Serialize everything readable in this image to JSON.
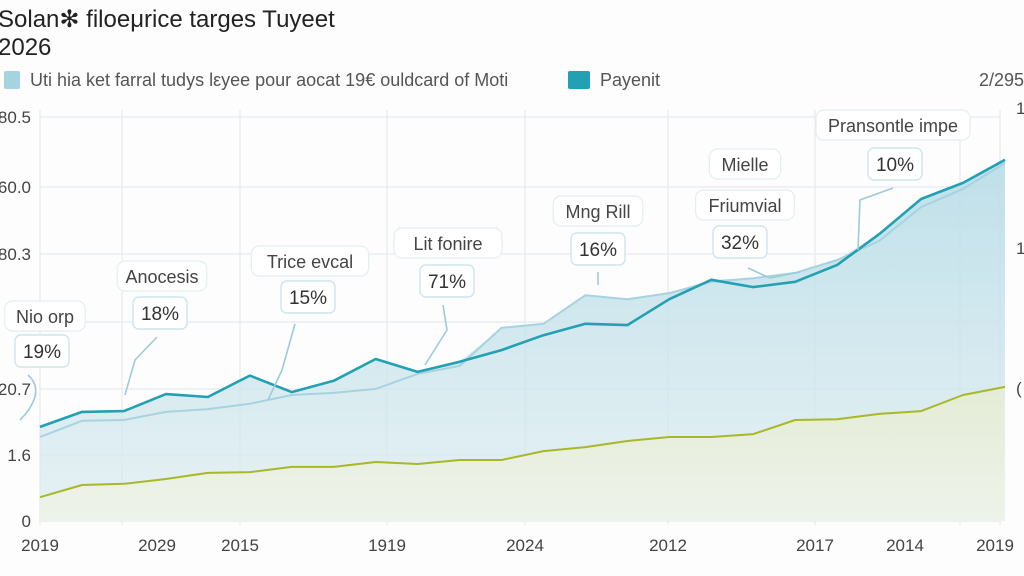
{
  "chart_data": {
    "type": "area",
    "title": "Solan✻ filoeμrice targes Tuyeet\n2026",
    "page_indicator": "2/295",
    "legend": [
      {
        "name": "Uti hia ket farral tudys lεyee pour aocat 19€ ouldcard of Moti",
        "color": "#a6d3e0"
      },
      {
        "name": "Payenit",
        "color": "#23a0b3"
      }
    ],
    "legend_placement": "top-left",
    "grid": true,
    "x_tick_labels": [
      "2019",
      "2029",
      "2015",
      "1919",
      "2024",
      "2012",
      "2017",
      "2014",
      "2019"
    ],
    "y_tick_labels": [
      "0",
      "1.6",
      "20.7",
      "",
      "80.3",
      "60.0",
      "80.5"
    ],
    "y_right_tick_labels": [
      "(",
      "1",
      "1"
    ],
    "ylim": [
      0,
      100
    ],
    "x_count": 24,
    "series": [
      {
        "name": "Uti hia ket farral tudys lεyee pour aocat 19€ ouldcard of Moti",
        "color": "#a6d3e0",
        "values": [
          20.8,
          24.8,
          25.0,
          27.0,
          27.7,
          29.0,
          31.2,
          31.7,
          32.7,
          36.4,
          38.4,
          47.8,
          48.8,
          55.9,
          54.9,
          56.4,
          59.2,
          60.1,
          61.4,
          64.6,
          69.3,
          77.7,
          82.2,
          88.6
        ]
      },
      {
        "name": "Payenit",
        "color": "#23a0b3",
        "values": [
          23.3,
          27.0,
          27.2,
          31.4,
          30.7,
          36.0,
          31.9,
          34.7,
          40.1,
          36.9,
          39.4,
          42.3,
          46.0,
          48.8,
          48.5,
          54.9,
          59.7,
          57.9,
          59.2,
          63.4,
          71.0,
          79.7,
          83.7,
          89.4
        ]
      },
      {
        "color": "#a8b826",
        "values": [
          5.9,
          8.9,
          9.2,
          10.4,
          11.9,
          12.1,
          13.4,
          13.4,
          14.6,
          14.1,
          15.1,
          15.1,
          17.3,
          18.3,
          19.8,
          20.8,
          20.8,
          21.5,
          25.0,
          25.2,
          26.5,
          27.2,
          31.2,
          33.2
        ]
      }
    ],
    "annotations": [
      {
        "label": "Nio orp",
        "value": "19%"
      },
      {
        "label": "Anocesis",
        "value": "18%"
      },
      {
        "label": "Trice evcal",
        "value": "15%"
      },
      {
        "label": "Lit fonire",
        "value": "71%"
      },
      {
        "label": "Mng Rill",
        "value": "16%"
      },
      {
        "label": "Friumvial",
        "value": "32%"
      },
      {
        "label": "Mielle",
        "value": ""
      },
      {
        "label": "Pransontle impe",
        "value": "10%"
      }
    ]
  }
}
